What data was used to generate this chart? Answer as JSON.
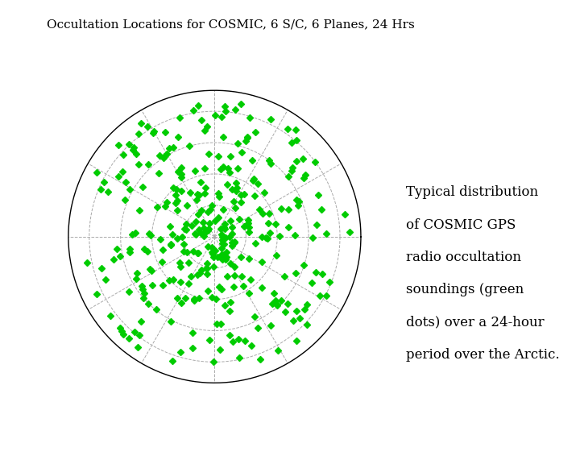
{
  "title": "Occultation Locations for COSMIC, 6 S/C, 6 Planes, 24 Hrs",
  "description_lines": [
    "Typical distribution",
    "of COSMIC GPS",
    "radio occultation",
    "soundings (green",
    "dots) over a 24-hour",
    "period over the Arctic."
  ],
  "background_color": "#ffffff",
  "marker_color": "#00cc00",
  "coastline_color": "#000000",
  "grid_color": "#aaaaaa",
  "n_points": 350,
  "title_fontsize": 11,
  "desc_fontsize": 12,
  "seed": 42
}
